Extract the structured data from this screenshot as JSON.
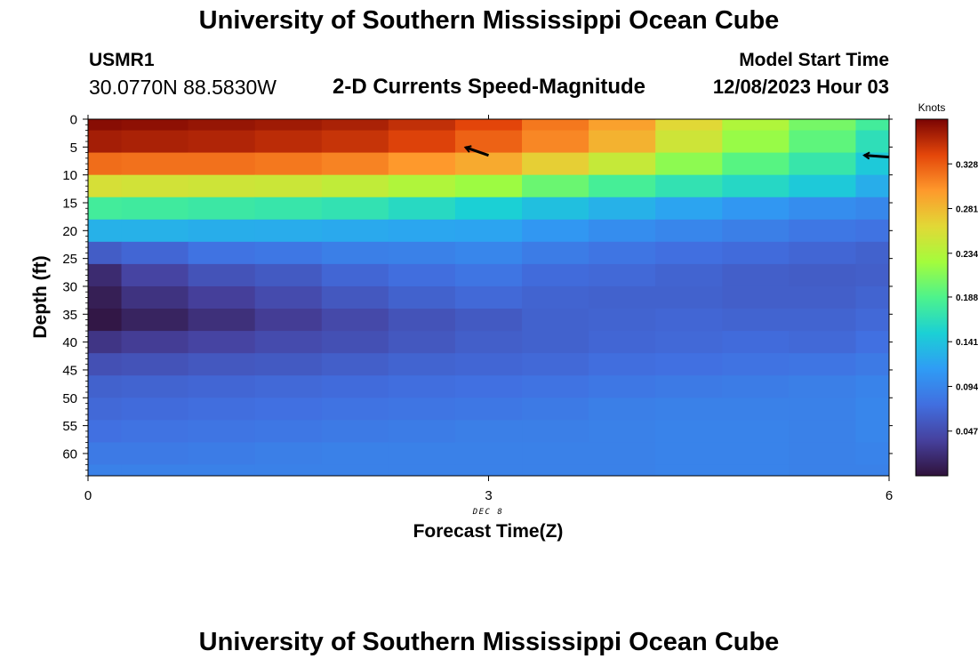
{
  "header": {
    "title": "University of Southern Mississippi Ocean Cube",
    "station": "USMR1",
    "coordinates": "30.0770N  88.5830W",
    "subtitle": "2-D Currents Speed-Magnitude",
    "model_start_label": "Model Start Time",
    "model_start_value": "12/08/2023 Hour 03"
  },
  "footer": {
    "title": "University of Southern Mississippi Ocean Cube"
  },
  "chart_data": {
    "type": "heatmap",
    "xlabel": "Forecast Time(Z)",
    "ylabel": "Depth (ft)",
    "x_ticks": [
      0,
      3,
      6
    ],
    "x_date_label": "DEC 8",
    "xlim": [
      0,
      6
    ],
    "y_ticks": [
      0,
      5,
      10,
      15,
      20,
      25,
      30,
      35,
      40,
      45,
      50,
      55,
      60
    ],
    "ylim": [
      0,
      64
    ],
    "y_inverted": true,
    "colorbar": {
      "label": "Knots",
      "ticks": [
        "0.328",
        "0.281",
        "0.234",
        "0.188",
        "0.141",
        "0.094",
        "0.047"
      ],
      "tick_values": [
        0.328,
        0.281,
        0.234,
        0.188,
        0.141,
        0.094,
        0.047
      ],
      "range": [
        0.0,
        0.375
      ],
      "colormap": "turbo"
    },
    "time_columns": [
      0.0,
      0.5,
      1.0,
      1.5,
      2.0,
      2.5,
      3.0,
      3.5,
      4.0,
      4.5,
      5.0,
      5.5,
      6.0
    ],
    "depth_levels": [
      0,
      4,
      8,
      12,
      16,
      20,
      24,
      28,
      32,
      36,
      40,
      44,
      48,
      52,
      56,
      60,
      64
    ],
    "speed_knots": [
      [
        0.37,
        0.368,
        0.365,
        0.362,
        0.358,
        0.35,
        0.338,
        0.315,
        0.295,
        0.262,
        0.232,
        0.205,
        0.18
      ],
      [
        0.36,
        0.358,
        0.356,
        0.352,
        0.348,
        0.34,
        0.325,
        0.308,
        0.285,
        0.25,
        0.22,
        0.195,
        0.165
      ],
      [
        0.32,
        0.318,
        0.318,
        0.315,
        0.31,
        0.3,
        0.29,
        0.268,
        0.245,
        0.215,
        0.192,
        0.172,
        0.145
      ],
      [
        0.255,
        0.252,
        0.25,
        0.248,
        0.242,
        0.232,
        0.222,
        0.2,
        0.182,
        0.168,
        0.158,
        0.145,
        0.125
      ],
      [
        0.18,
        0.178,
        0.175,
        0.172,
        0.168,
        0.16,
        0.15,
        0.138,
        0.128,
        0.118,
        0.108,
        0.1,
        0.095
      ],
      [
        0.128,
        0.128,
        0.125,
        0.124,
        0.122,
        0.12,
        0.118,
        0.108,
        0.1,
        0.094,
        0.088,
        0.082,
        0.078
      ],
      [
        0.06,
        0.068,
        0.078,
        0.082,
        0.088,
        0.09,
        0.094,
        0.086,
        0.08,
        0.075,
        0.072,
        0.068,
        0.064
      ],
      [
        0.02,
        0.04,
        0.052,
        0.058,
        0.068,
        0.074,
        0.08,
        0.072,
        0.07,
        0.066,
        0.062,
        0.06,
        0.062
      ],
      [
        0.01,
        0.026,
        0.036,
        0.046,
        0.056,
        0.064,
        0.07,
        0.066,
        0.064,
        0.064,
        0.062,
        0.062,
        0.066
      ],
      [
        0.004,
        0.014,
        0.024,
        0.034,
        0.044,
        0.052,
        0.058,
        0.064,
        0.066,
        0.068,
        0.066,
        0.066,
        0.07
      ],
      [
        0.028,
        0.034,
        0.04,
        0.046,
        0.05,
        0.056,
        0.062,
        0.064,
        0.068,
        0.07,
        0.072,
        0.07,
        0.076
      ],
      [
        0.05,
        0.052,
        0.056,
        0.058,
        0.062,
        0.066,
        0.068,
        0.07,
        0.074,
        0.076,
        0.078,
        0.08,
        0.084
      ],
      [
        0.064,
        0.066,
        0.068,
        0.07,
        0.072,
        0.074,
        0.076,
        0.078,
        0.082,
        0.084,
        0.086,
        0.088,
        0.092
      ],
      [
        0.07,
        0.072,
        0.074,
        0.076,
        0.078,
        0.08,
        0.082,
        0.084,
        0.088,
        0.09,
        0.09,
        0.09,
        0.094
      ],
      [
        0.076,
        0.078,
        0.08,
        0.082,
        0.084,
        0.086,
        0.088,
        0.088,
        0.09,
        0.092,
        0.092,
        0.09,
        0.094
      ],
      [
        0.084,
        0.084,
        0.086,
        0.088,
        0.09,
        0.09,
        0.09,
        0.09,
        0.09,
        0.092,
        0.092,
        0.09,
        0.092
      ],
      [
        0.09,
        0.09,
        0.09,
        0.09,
        0.09,
        0.09,
        0.09,
        0.09,
        0.09,
        0.092,
        0.092,
        0.09,
        0.09
      ]
    ],
    "current_vectors": [
      {
        "time": 3.0,
        "depth": 6.5,
        "direction": "west-northwest"
      },
      {
        "time": 6.0,
        "depth": 6.8,
        "direction": "west"
      }
    ]
  }
}
